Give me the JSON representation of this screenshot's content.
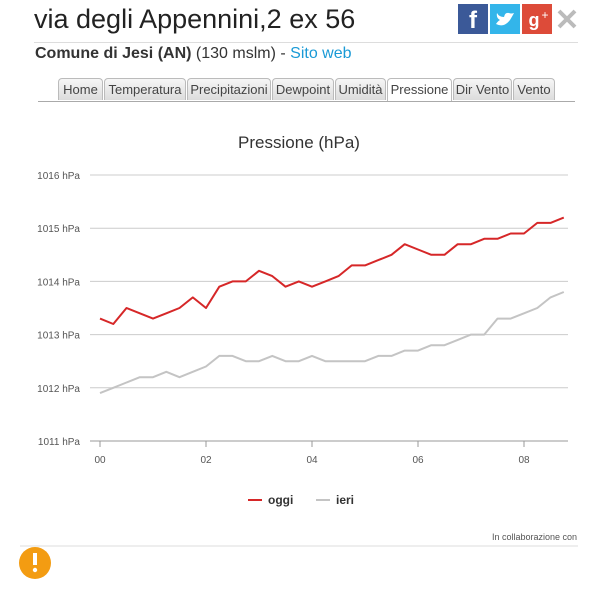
{
  "header": {
    "title": "via degli Appennini,2 ex 56",
    "place": "Comune di Jesi (AN)",
    "elevation": "(130 mslm) -",
    "link": "Sito web"
  },
  "tabs": [
    "Home",
    "Temperatura",
    "Precipitazioni",
    "Dewpoint",
    "Umidità",
    "Pressione",
    "Dir Vento",
    "Vento"
  ],
  "active_tab": "Pressione",
  "chart_data": {
    "type": "line",
    "title": "Pressione (hPa)",
    "x": [
      0,
      0.25,
      0.5,
      0.75,
      1,
      1.25,
      1.5,
      1.75,
      2,
      2.25,
      2.5,
      2.75,
      3,
      3.25,
      3.5,
      3.75,
      4,
      4.25,
      4.5,
      4.75,
      5,
      5.25,
      5.5,
      5.75,
      6,
      6.25,
      6.5,
      6.75,
      7,
      7.25,
      7.5,
      7.75,
      8,
      8.25,
      8.5,
      8.75
    ],
    "series": [
      {
        "name": "oggi",
        "color": "#d62728",
        "values": [
          1013.3,
          1013.2,
          1013.5,
          1013.4,
          1013.3,
          1013.4,
          1013.5,
          1013.7,
          1013.5,
          1013.9,
          1014.0,
          1014.0,
          1014.2,
          1014.1,
          1013.9,
          1014.0,
          1013.9,
          1014.0,
          1014.1,
          1014.3,
          1014.3,
          1014.4,
          1014.5,
          1014.7,
          1014.6,
          1014.5,
          1014.5,
          1014.7,
          1014.7,
          1014.8,
          1014.8,
          1014.9,
          1014.9,
          1015.1,
          1015.1,
          1015.2
        ]
      },
      {
        "name": "ieri",
        "color": "#c4c4c4",
        "values": [
          1011.9,
          1012.0,
          1012.1,
          1012.2,
          1012.2,
          1012.3,
          1012.2,
          1012.3,
          1012.4,
          1012.6,
          1012.6,
          1012.5,
          1012.5,
          1012.6,
          1012.5,
          1012.5,
          1012.6,
          1012.5,
          1012.5,
          1012.5,
          1012.5,
          1012.6,
          1012.6,
          1012.7,
          1012.7,
          1012.8,
          1012.8,
          1012.9,
          1013.0,
          1013.0,
          1013.3,
          1013.3,
          1013.4,
          1013.5,
          1013.7,
          1013.8
        ]
      }
    ],
    "xlim": [
      0,
      8.8
    ],
    "xticks": [
      {
        "value": 0,
        "label": "00"
      },
      {
        "value": 2,
        "label": "02"
      },
      {
        "value": 4,
        "label": "04"
      },
      {
        "value": 6,
        "label": "06"
      },
      {
        "value": 8,
        "label": "08"
      }
    ],
    "ylim": [
      1011,
      1016
    ],
    "yticks": [
      {
        "value": 1011,
        "label": "1011 hPa"
      },
      {
        "value": 1012,
        "label": "1012 hPa"
      },
      {
        "value": 1013,
        "label": "1013 hPa"
      },
      {
        "value": 1014,
        "label": "1014 hPa"
      },
      {
        "value": 1015,
        "label": "1015 hPa"
      },
      {
        "value": 1016,
        "label": "1016 hPa"
      }
    ],
    "grid": true
  },
  "footer": {
    "credit": "In collaborazione con"
  }
}
